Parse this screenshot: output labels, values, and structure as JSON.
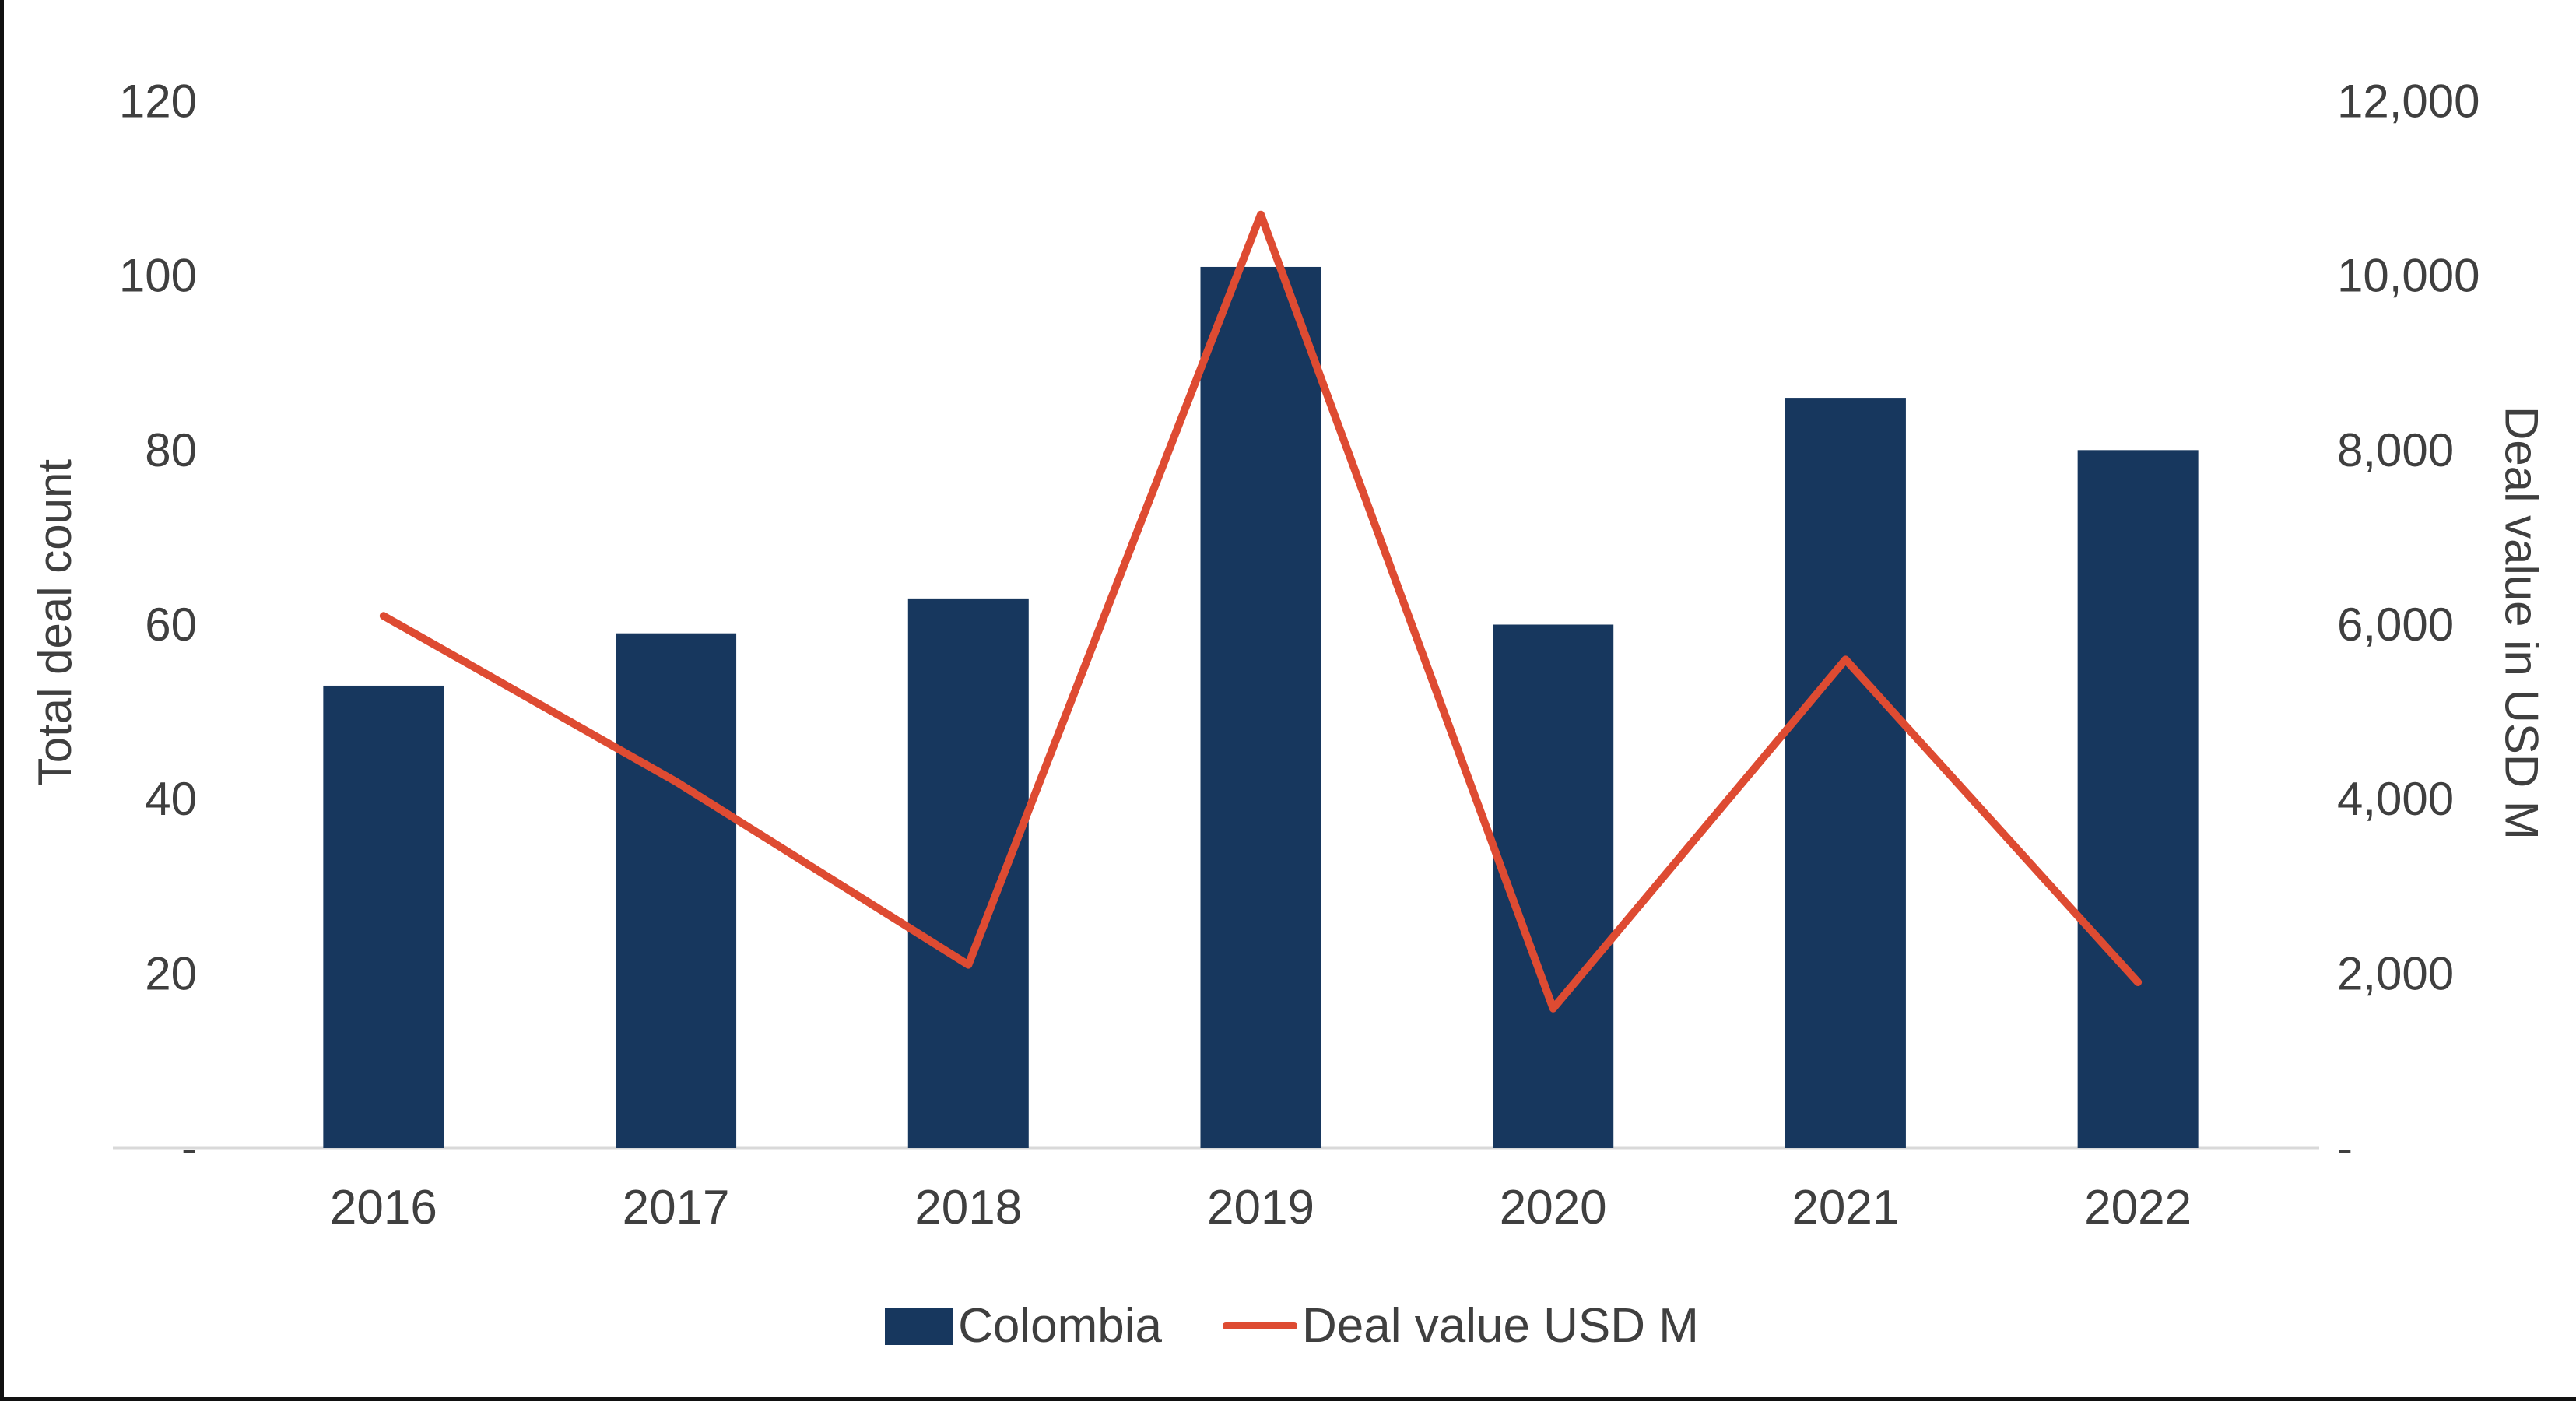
{
  "chart_data": {
    "type": "combo-bar-line",
    "title": "",
    "categories": [
      "2016",
      "2017",
      "2018",
      "2019",
      "2020",
      "2021",
      "2022"
    ],
    "series": [
      {
        "name": "Colombia",
        "type": "bar",
        "axis": "left",
        "values": [
          53,
          59,
          63,
          101,
          60,
          86,
          80
        ]
      },
      {
        "name": "Deal value USD M",
        "type": "line",
        "axis": "right",
        "values": [
          6100,
          4200,
          2100,
          10700,
          1600,
          5600,
          1900
        ]
      }
    ],
    "ylabel_left": "Total deal count",
    "ylabel_right": "Deal value in USD M",
    "y_left": {
      "lim": [
        0,
        120
      ],
      "ticks": [
        0,
        20,
        40,
        60,
        80,
        100,
        120
      ],
      "labels": [
        "-",
        "20",
        "40",
        "60",
        "80",
        "100",
        "120"
      ]
    },
    "y_right": {
      "lim": [
        0,
        12000
      ],
      "ticks": [
        0,
        2000,
        4000,
        6000,
        8000,
        10000,
        12000
      ],
      "labels": [
        "-",
        "2,000",
        "4,000",
        "6,000",
        "8,000",
        "10,000",
        "12,000"
      ]
    },
    "grid": "off",
    "legend_position": "bottom",
    "colors": {
      "bar": "#17375E",
      "line": "#DE4B32",
      "baseline": "#D9D9D9",
      "text": "#3F3F3F"
    }
  }
}
